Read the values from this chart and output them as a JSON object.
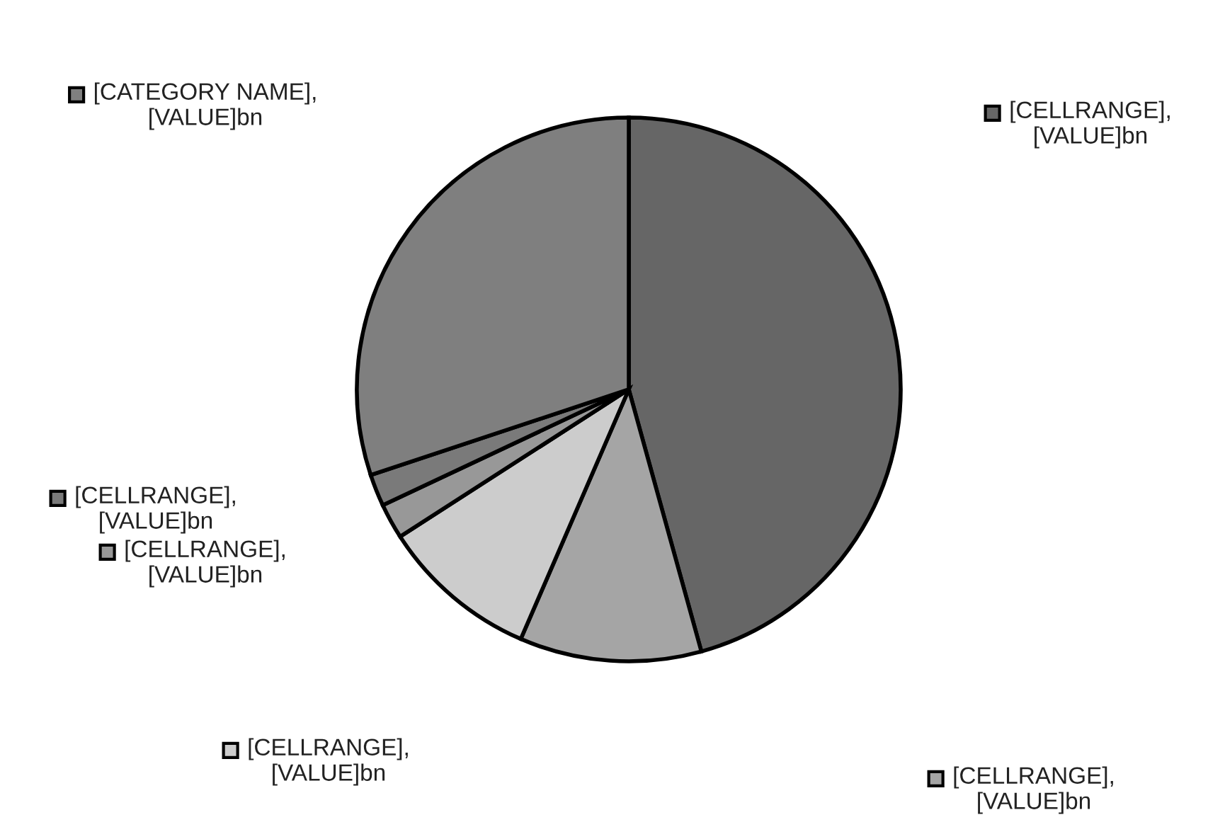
{
  "chart_data": {
    "type": "pie",
    "categories": [
      "[CELLRANGE],\n[VALUE]bn",
      "[CELLRANGE],\n[VALUE]bn",
      "[CELLRANGE],\n[VALUE]bn",
      "[CELLRANGE],\n[VALUE]bn",
      "[CELLRANGE],\n[VALUE]bn",
      "[CATEGORY NAME],\n[VALUE]bn"
    ],
    "values": [
      45.7,
      10.8,
      9.4,
      2.1,
      1.9,
      30.1
    ],
    "legend": "left",
    "colors": [
      "#666666",
      "#a5a5a5",
      "#cccccc",
      "#989898",
      "#7a7a7a",
      "#7f7f7f"
    ]
  }
}
